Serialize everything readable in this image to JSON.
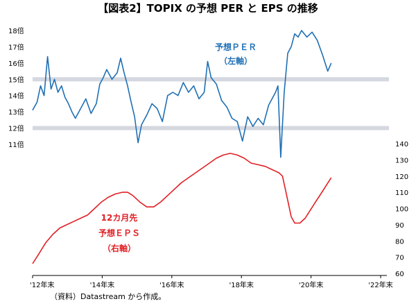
{
  "chart_data": {
    "type": "line",
    "title": "【図表2】TOPIX の予想 PER と EPS の推移",
    "source_note": "（資料）Datastream から作成。",
    "x_ticks": [
      "'12年末",
      "'14年末",
      "'16年末",
      "'18年末",
      "'20年末",
      "'22年末"
    ],
    "xlim": [
      2012.92,
      2022.92
    ],
    "left_axis": {
      "ticks": [
        "11倍",
        "12倍",
        "13倍",
        "14倍",
        "15倍",
        "16倍",
        "17倍",
        "18倍"
      ],
      "ylim": [
        11,
        18
      ]
    },
    "right_axis": {
      "ticks": [
        "60",
        "70",
        "80",
        "90",
        "100",
        "110",
        "120",
        "130",
        "140"
      ],
      "ylim": [
        60,
        140
      ]
    },
    "reference_bands": [
      15,
      12
    ],
    "series": [
      {
        "label_lines": [
          "予想ＰＥＲ",
          "（左軸）"
        ],
        "axis": "left",
        "color": "#1f6fb4",
        "x": [
          2012.92,
          2013.05,
          2013.15,
          2013.25,
          2013.35,
          2013.45,
          2013.55,
          2013.65,
          2013.75,
          2013.85,
          2013.95,
          2014.05,
          2014.15,
          2014.3,
          2014.45,
          2014.6,
          2014.75,
          2014.85,
          2014.95,
          2015.05,
          2015.2,
          2015.35,
          2015.45,
          2015.55,
          2015.65,
          2015.75,
          2015.85,
          2015.95,
          2016.05,
          2016.2,
          2016.35,
          2016.5,
          2016.65,
          2016.8,
          2016.95,
          2017.1,
          2017.25,
          2017.4,
          2017.55,
          2017.7,
          2017.85,
          2017.95,
          2018.05,
          2018.2,
          2018.35,
          2018.5,
          2018.65,
          2018.8,
          2018.95,
          2019.1,
          2019.25,
          2019.4,
          2019.55,
          2019.7,
          2019.8,
          2019.9,
          2019.97,
          2020.05,
          2020.15,
          2020.25,
          2020.35,
          2020.45,
          2020.55,
          2020.65,
          2020.8,
          2020.95,
          2021.1,
          2021.25,
          2021.4,
          2021.5
        ],
        "values": [
          13.1,
          13.6,
          14.6,
          14.0,
          16.4,
          14.4,
          15.0,
          14.2,
          14.6,
          13.9,
          13.5,
          13.0,
          12.6,
          13.2,
          13.8,
          12.9,
          13.5,
          14.7,
          15.1,
          15.6,
          15.0,
          15.4,
          16.3,
          15.4,
          14.6,
          13.6,
          12.7,
          11.1,
          12.2,
          12.8,
          13.5,
          13.2,
          12.4,
          14.0,
          14.2,
          14.0,
          14.8,
          14.2,
          14.6,
          13.8,
          14.2,
          16.1,
          15.1,
          14.7,
          13.7,
          13.3,
          12.6,
          12.4,
          11.2,
          12.7,
          12.1,
          12.6,
          12.2,
          13.4,
          13.8,
          14.2,
          14.6,
          10.2,
          14.2,
          16.6,
          17.0,
          17.8,
          17.6,
          18.0,
          17.6,
          17.9,
          17.4,
          16.5,
          15.5,
          16.0
        ]
      },
      {
        "label_lines": [
          "12カ月先",
          "予想ＥＰＳ",
          "（右軸）"
        ],
        "axis": "right",
        "color": "#e11f24",
        "x": [
          2012.92,
          2013.1,
          2013.3,
          2013.5,
          2013.7,
          2013.9,
          2014.1,
          2014.3,
          2014.5,
          2014.7,
          2014.9,
          2015.1,
          2015.3,
          2015.5,
          2015.65,
          2015.8,
          2016.0,
          2016.2,
          2016.4,
          2016.6,
          2016.8,
          2017.0,
          2017.2,
          2017.4,
          2017.6,
          2017.8,
          2018.0,
          2018.2,
          2018.4,
          2018.6,
          2018.8,
          2019.0,
          2019.2,
          2019.4,
          2019.6,
          2019.8,
          2019.9,
          2020.0,
          2020.1,
          2020.2,
          2020.35,
          2020.45,
          2020.6,
          2020.75,
          2020.9,
          2021.05,
          2021.2,
          2021.35,
          2021.5
        ],
        "values": [
          66,
          72,
          79,
          84,
          88,
          90,
          92,
          94,
          96,
          100,
          104,
          107,
          109,
          110,
          110,
          108,
          104,
          101,
          101,
          104,
          108,
          112,
          116,
          119,
          122,
          125,
          128,
          131,
          133,
          134,
          133,
          131,
          128,
          127,
          126,
          124,
          123,
          122,
          120,
          110,
          95,
          91,
          91,
          94,
          99,
          104,
          109,
          114,
          119
        ]
      }
    ]
  }
}
